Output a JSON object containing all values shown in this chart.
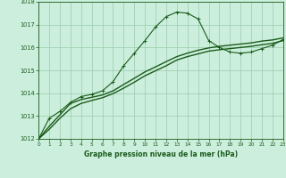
{
  "bg_color": "#cceedd",
  "grid_color": "#99ccaa",
  "line_color": "#1a5c1a",
  "text_color": "#1a5c1a",
  "xlabel": "Graphe pression niveau de la mer (hPa)",
  "ylim": [
    1012,
    1018
  ],
  "xlim": [
    0,
    23
  ],
  "yticks": [
    1012,
    1013,
    1014,
    1015,
    1016,
    1017,
    1018
  ],
  "xticks": [
    0,
    1,
    2,
    3,
    4,
    5,
    6,
    7,
    8,
    9,
    10,
    11,
    12,
    13,
    14,
    15,
    16,
    17,
    18,
    19,
    20,
    21,
    22,
    23
  ],
  "line1_x": [
    0,
    1,
    2,
    3,
    4,
    5,
    6,
    7,
    8,
    9,
    10,
    11,
    12,
    13,
    14,
    15,
    16,
    17,
    18,
    19,
    20,
    21,
    22,
    23
  ],
  "line1_y": [
    1012.0,
    1012.9,
    1013.2,
    1013.6,
    1013.85,
    1013.95,
    1014.1,
    1014.5,
    1015.2,
    1015.75,
    1016.3,
    1016.9,
    1017.35,
    1017.55,
    1017.5,
    1017.25,
    1016.3,
    1016.0,
    1015.8,
    1015.75,
    1015.8,
    1015.95,
    1016.1,
    1016.35
  ],
  "line2_x": [
    0,
    1,
    2,
    3,
    4,
    5,
    6,
    7,
    8,
    9,
    10,
    11,
    12,
    13,
    14,
    15,
    16,
    17,
    18,
    19,
    20,
    21,
    22,
    23
  ],
  "line2_y": [
    1012.0,
    1012.55,
    1013.05,
    1013.55,
    1013.72,
    1013.82,
    1013.92,
    1014.1,
    1014.38,
    1014.65,
    1014.93,
    1015.15,
    1015.38,
    1015.6,
    1015.75,
    1015.88,
    1015.98,
    1016.05,
    1016.1,
    1016.15,
    1016.2,
    1016.28,
    1016.33,
    1016.42
  ],
  "line3_x": [
    0,
    1,
    2,
    3,
    4,
    5,
    6,
    7,
    8,
    9,
    10,
    11,
    12,
    13,
    14,
    15,
    16,
    17,
    18,
    19,
    20,
    21,
    22,
    23
  ],
  "line3_y": [
    1012.0,
    1012.42,
    1012.9,
    1013.32,
    1013.55,
    1013.68,
    1013.8,
    1013.98,
    1014.22,
    1014.48,
    1014.76,
    1014.98,
    1015.2,
    1015.45,
    1015.6,
    1015.72,
    1015.84,
    1015.9,
    1015.95,
    1016.0,
    1016.05,
    1016.12,
    1016.18,
    1016.3
  ]
}
